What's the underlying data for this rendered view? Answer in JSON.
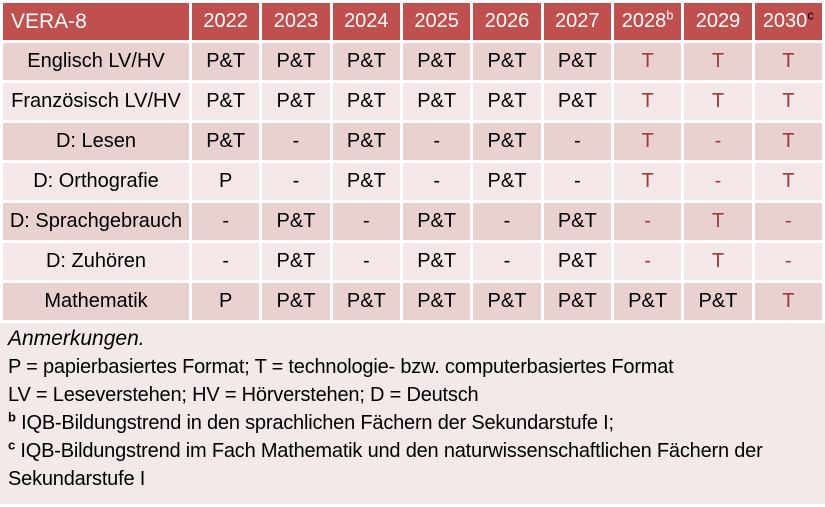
{
  "colors": {
    "header_bg": "#C0504D",
    "header_text": "#FFFFFF",
    "row_band_dark": "#E8D1CF",
    "row_band_light": "#F3E8E7",
    "notes_bg": "#F3E9E8",
    "accent_text": "#9E3B38",
    "body_text": "#000000"
  },
  "table": {
    "corner_label": "VERA-8",
    "accent_from_column": 6,
    "accent_exempt_value": "P&T",
    "columns": [
      {
        "year": "2022",
        "sup": "",
        "sup_color": ""
      },
      {
        "year": "2023",
        "sup": "",
        "sup_color": ""
      },
      {
        "year": "2024",
        "sup": "",
        "sup_color": ""
      },
      {
        "year": "2025",
        "sup": "",
        "sup_color": ""
      },
      {
        "year": "2026",
        "sup": "",
        "sup_color": ""
      },
      {
        "year": "2027",
        "sup": "",
        "sup_color": ""
      },
      {
        "year": "2028",
        "sup": "b",
        "sup_color": "#FFFFFF"
      },
      {
        "year": "2029",
        "sup": "",
        "sup_color": ""
      },
      {
        "year": "2030",
        "sup": "c",
        "sup_color": "#000000"
      }
    ],
    "rows": [
      {
        "label": "Englisch LV/HV",
        "values": [
          "P&T",
          "P&T",
          "P&T",
          "P&T",
          "P&T",
          "P&T",
          "T",
          "T",
          "T"
        ]
      },
      {
        "label": "Französisch LV/HV",
        "values": [
          "P&T",
          "P&T",
          "P&T",
          "P&T",
          "P&T",
          "P&T",
          "T",
          "T",
          "T"
        ]
      },
      {
        "label": "D: Lesen",
        "values": [
          "P&T",
          "-",
          "P&T",
          "-",
          "P&T",
          "-",
          "T",
          "-",
          "T"
        ]
      },
      {
        "label": "D: Orthografie",
        "values": [
          "P",
          "-",
          "P&T",
          "-",
          "P&T",
          "-",
          "T",
          "-",
          "T"
        ]
      },
      {
        "label": "D: Sprachgebrauch",
        "values": [
          "-",
          "P&T",
          "-",
          "P&T",
          "-",
          "P&T",
          "-",
          "T",
          "-"
        ]
      },
      {
        "label": "D: Zuhören",
        "values": [
          "-",
          "P&T",
          "-",
          "P&T",
          "-",
          "P&T",
          "-",
          "T",
          "-"
        ]
      },
      {
        "label": "Mathematik",
        "values": [
          "P",
          "P&T",
          "P&T",
          "P&T",
          "P&T",
          "P&T",
          "P&T",
          "P&T",
          "T"
        ]
      }
    ]
  },
  "notes": {
    "heading": "Anmerkungen.",
    "lines": [
      {
        "sup": "",
        "text": "P = papierbasiertes Format; T = technologie- bzw. computerbasiertes Format"
      },
      {
        "sup": "",
        "text": "LV = Leseverstehen; HV = Hörverstehen; D = Deutsch"
      },
      {
        "sup": "b",
        "text": "IQB-Bildungstrend in den sprachlichen Fächern der Sekundarstufe I;"
      },
      {
        "sup": "c",
        "text": "IQB-Bildungstrend im Fach Mathematik und den naturwissenschaftlichen Fächern der Sekundarstufe I"
      }
    ]
  }
}
